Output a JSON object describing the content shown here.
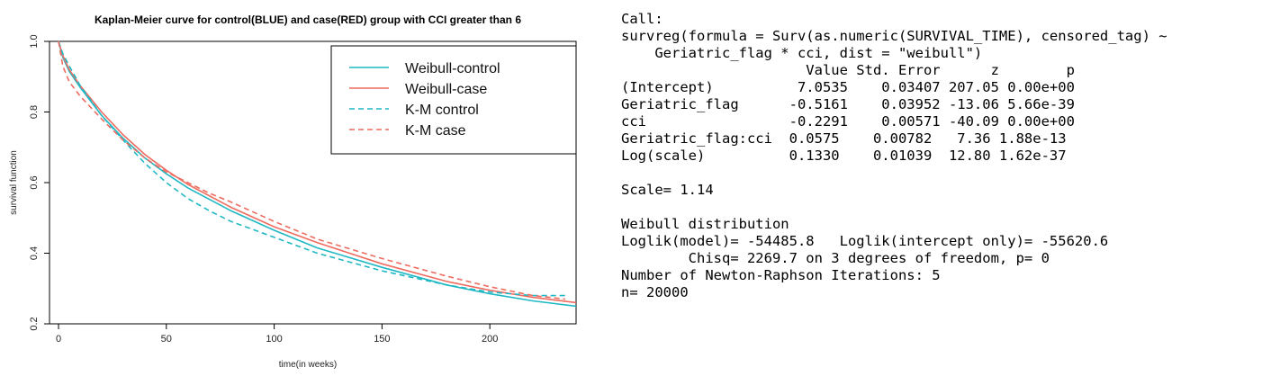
{
  "chart_data": {
    "type": "line",
    "title": "Kaplan-Meier curve for control(BLUE) and case(RED) group with CCI greater than 6",
    "xlabel": "time(in weeks)",
    "ylabel": "survival function",
    "xlim": [
      0,
      240
    ],
    "ylim": [
      0.2,
      1.0
    ],
    "xticks": [
      0,
      50,
      100,
      150,
      200
    ],
    "yticks": [
      0.2,
      0.4,
      0.6,
      0.8,
      1.0
    ],
    "ytick_labels": [
      "0.2",
      "0.4",
      "0.6",
      "0.8",
      "1.0"
    ],
    "grid": false,
    "legend_position": "top-right",
    "series": [
      {
        "name": "Weibull-control",
        "color": "#1fb8c4",
        "dash": "solid",
        "x": [
          0,
          2,
          5,
          10,
          20,
          30,
          40,
          50,
          60,
          80,
          100,
          120,
          150,
          180,
          200,
          220,
          240
        ],
        "y": [
          1.0,
          0.955,
          0.915,
          0.87,
          0.79,
          0.725,
          0.67,
          0.625,
          0.585,
          0.52,
          0.465,
          0.415,
          0.36,
          0.31,
          0.285,
          0.265,
          0.25
        ]
      },
      {
        "name": "Weibull-case",
        "color": "#ee6b60",
        "dash": "solid",
        "x": [
          0,
          2,
          5,
          10,
          20,
          30,
          40,
          50,
          60,
          80,
          100,
          120,
          150,
          180,
          200,
          220,
          240
        ],
        "y": [
          1.0,
          0.96,
          0.92,
          0.875,
          0.8,
          0.735,
          0.68,
          0.635,
          0.595,
          0.53,
          0.475,
          0.43,
          0.37,
          0.32,
          0.295,
          0.275,
          0.26
        ]
      },
      {
        "name": "K-M control",
        "color": "#1fb8c4",
        "dash": "dashed",
        "x": [
          0,
          2,
          5,
          10,
          20,
          30,
          40,
          50,
          60,
          70,
          80,
          100,
          120,
          150,
          180,
          200,
          220,
          235
        ],
        "y": [
          1.0,
          0.965,
          0.93,
          0.875,
          0.79,
          0.72,
          0.655,
          0.6,
          0.555,
          0.52,
          0.49,
          0.445,
          0.4,
          0.35,
          0.31,
          0.29,
          0.28,
          0.28
        ]
      },
      {
        "name": "K-M case",
        "color": "#ee6b60",
        "dash": "dashed",
        "x": [
          0,
          2,
          5,
          10,
          20,
          30,
          40,
          50,
          60,
          70,
          80,
          100,
          120,
          150,
          180,
          200,
          220,
          235
        ],
        "y": [
          1.0,
          0.93,
          0.885,
          0.845,
          0.78,
          0.72,
          0.67,
          0.63,
          0.6,
          0.57,
          0.545,
          0.49,
          0.44,
          0.385,
          0.335,
          0.305,
          0.28,
          0.27
        ]
      }
    ]
  },
  "console": {
    "lines": [
      "Call:",
      "survreg(formula = Surv(as.numeric(SURVIVAL_TIME), censored_tag) ~",
      "    Geriatric_flag * cci, dist = \"weibull\")",
      "                      Value Std. Error      z        p",
      "(Intercept)          7.0535    0.03407 207.05 0.00e+00",
      "Geriatric_flag      -0.5161    0.03952 -13.06 5.66e-39",
      "cci                 -0.2291    0.00571 -40.09 0.00e+00",
      "Geriatric_flag:cci  0.0575    0.00782   7.36 1.88e-13",
      "Log(scale)          0.1330    0.01039  12.80 1.62e-37",
      "",
      "Scale= 1.14",
      "",
      "Weibull distribution",
      "Loglik(model)= -54485.8   Loglik(intercept only)= -55620.6",
      "        Chisq= 2269.7 on 3 degrees of freedom, p= 0",
      "Number of Newton-Raphson Iterations: 5",
      "n= 20000"
    ]
  }
}
